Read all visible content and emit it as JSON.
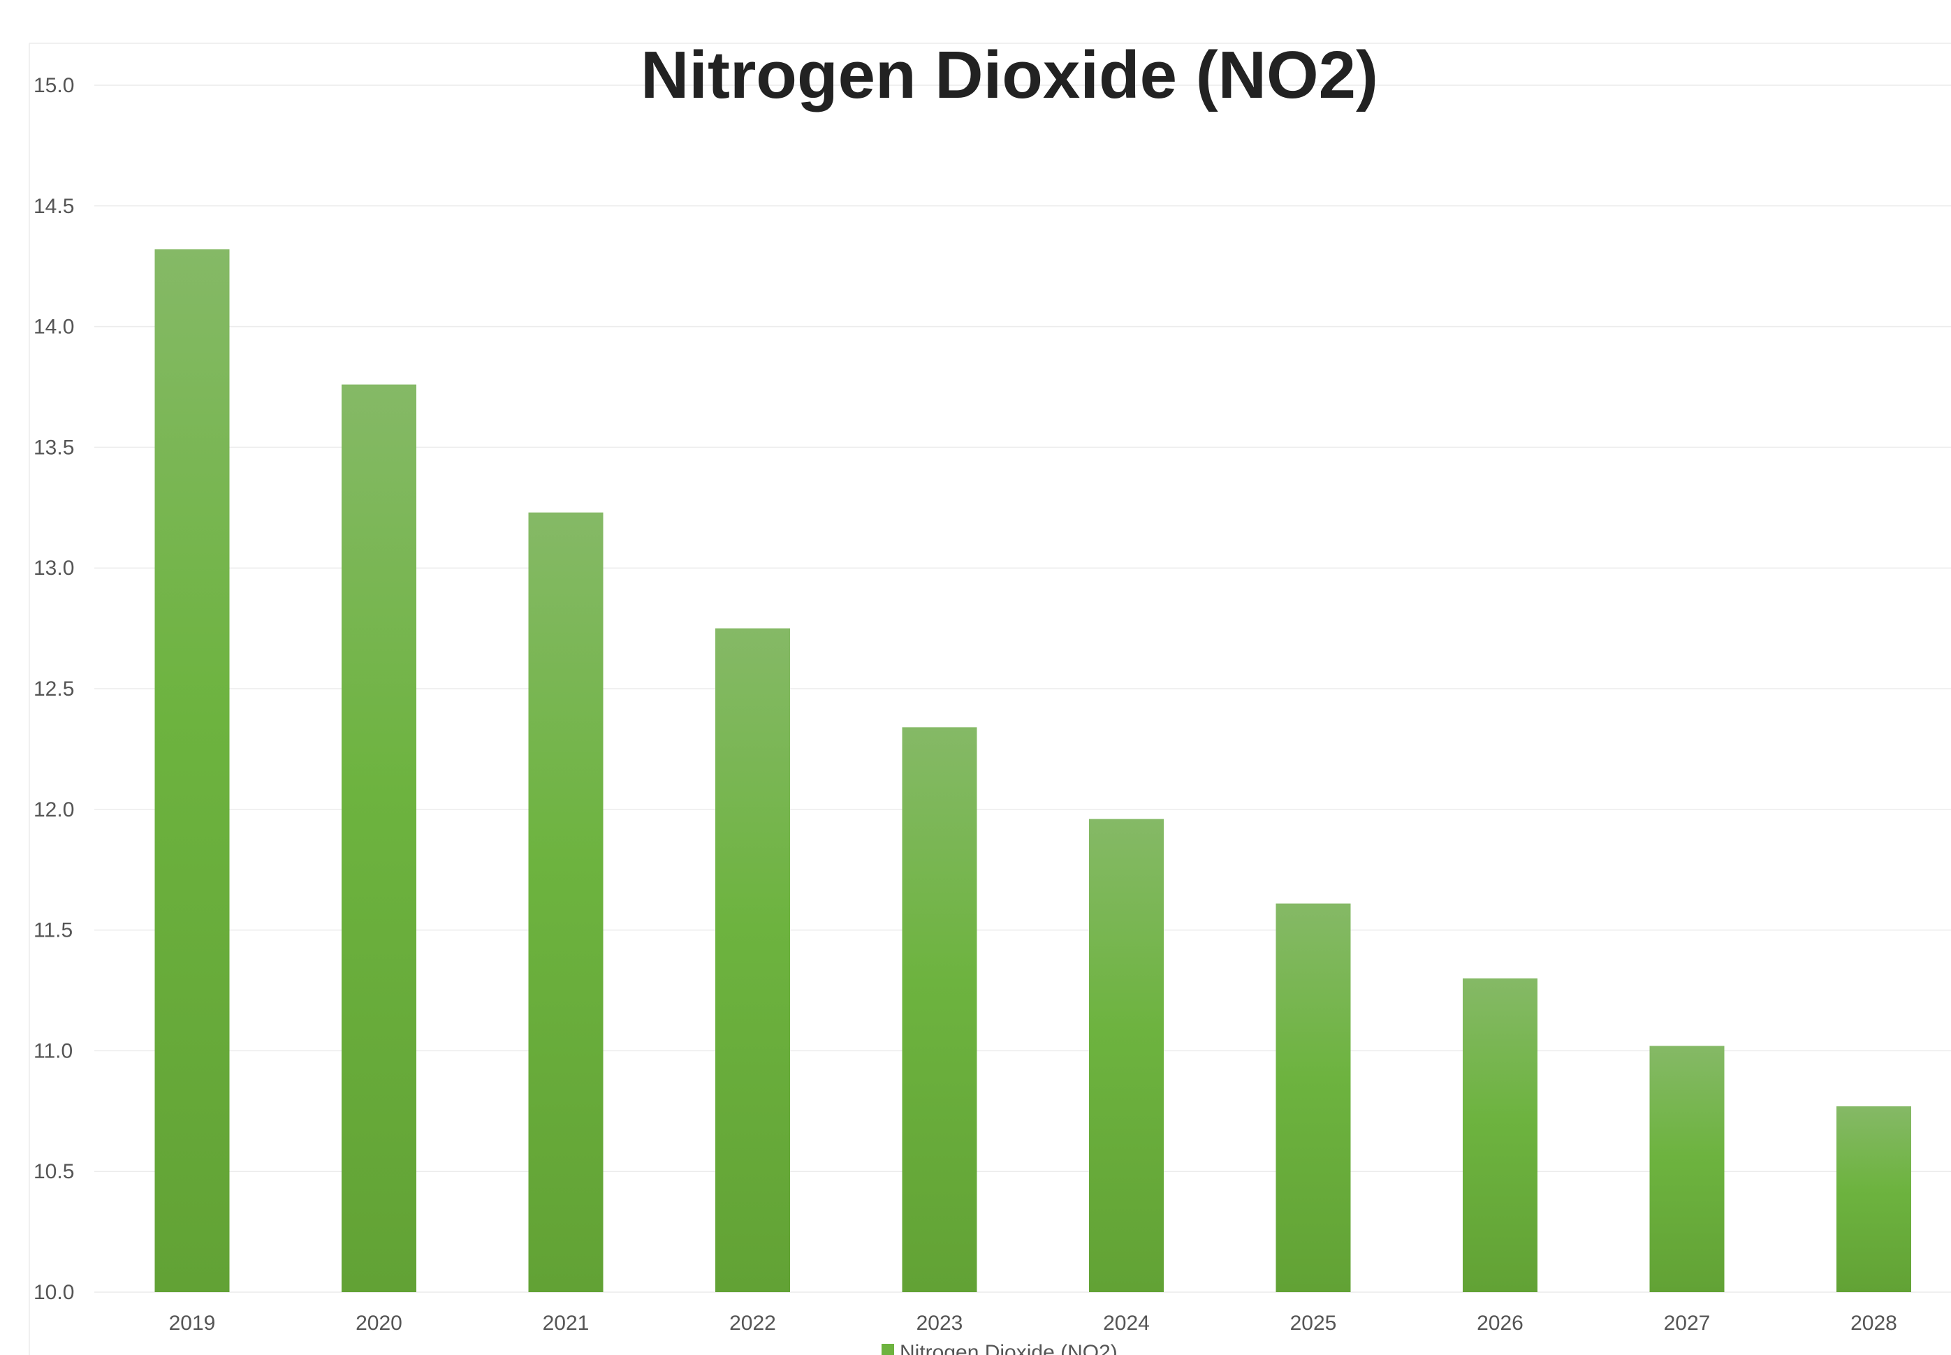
{
  "chart_data": {
    "type": "bar",
    "title": "Nitrogen Dioxide (NO2)",
    "xlabel": "",
    "ylabel": "",
    "categories": [
      "2019",
      "2020",
      "2021",
      "2022",
      "2023",
      "2024",
      "2025",
      "2026",
      "2027",
      "2028"
    ],
    "series": [
      {
        "name": "Nitrogen Dioxide (NO2)",
        "values": [
          14.32,
          13.76,
          13.23,
          12.75,
          12.34,
          11.96,
          11.61,
          11.3,
          11.02,
          10.77
        ],
        "color": "#6db33f",
        "color_top": "#85b966",
        "color_bottom": "#62a235"
      }
    ],
    "ylim": [
      10.0,
      15.0
    ],
    "yticks": [
      "10.0",
      "10.5",
      "11.0",
      "11.5",
      "12.0",
      "12.5",
      "13.0",
      "13.5",
      "14.0",
      "14.5",
      "15.0"
    ],
    "grid": true,
    "legend_position": "bottom-center"
  }
}
